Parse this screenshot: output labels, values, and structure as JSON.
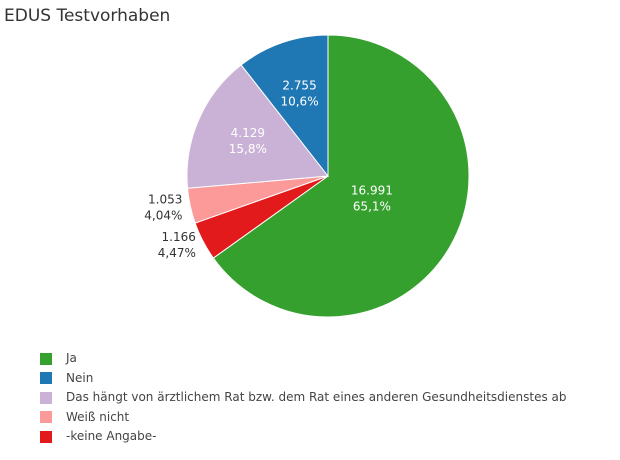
{
  "title": "EDUS Testvorhaben",
  "chart_data": {
    "type": "pie",
    "title": "EDUS Testvorhaben",
    "slices": [
      {
        "name": "Ja",
        "value": 16991,
        "value_label": "16.991",
        "percent_label": "65,1%",
        "color": "#36a02f"
      },
      {
        "name": "Nein",
        "value": 2755,
        "value_label": "2.755",
        "percent_label": "10,6%",
        "color": "#1f78b4"
      },
      {
        "name": "Das hängt von ärztlichem Rat bzw. dem Rat eines anderen Gesundheitsdienstes ab",
        "value": 4129,
        "value_label": "4.129",
        "percent_label": "15,8%",
        "color": "#cab2d6"
      },
      {
        "name": "Weiß nicht",
        "value": 1053,
        "value_label": "1.053",
        "percent_label": "4,04%",
        "color": "#fb9a99"
      },
      {
        "name": "-keine Angabe-",
        "value": 1166,
        "value_label": "1.166",
        "percent_label": "4,47%",
        "color": "#e31a1c"
      }
    ],
    "legend_placement": "bottom-left"
  }
}
